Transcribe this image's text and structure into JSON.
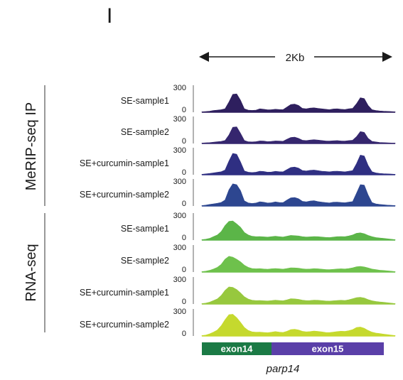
{
  "panel_label": "I",
  "scale_bar": {
    "label": "2Kb"
  },
  "groups": [
    {
      "label": "MeRIP-seq IP",
      "track_indices": [
        0,
        1,
        2,
        3
      ]
    },
    {
      "label": "RNA-seq",
      "track_indices": [
        4,
        5,
        6,
        7
      ]
    }
  ],
  "gene": {
    "name": "parp14",
    "exons": [
      {
        "label": "exon14",
        "color": "#1b7a45"
      },
      {
        "label": "exon15",
        "color": "#5a3fa8"
      }
    ]
  },
  "chart_data": {
    "type": "area",
    "xlabel": "",
    "ylabel": "",
    "ylim": [
      0,
      300
    ],
    "y_ticks": [
      "300",
      "0"
    ],
    "x": [
      0,
      0.02,
      0.04,
      0.06,
      0.08,
      0.1,
      0.12,
      0.14,
      0.16,
      0.18,
      0.2,
      0.22,
      0.24,
      0.26,
      0.28,
      0.3,
      0.32,
      0.34,
      0.36,
      0.38,
      0.4,
      0.42,
      0.44,
      0.46,
      0.48,
      0.5,
      0.52,
      0.54,
      0.56,
      0.58,
      0.6,
      0.62,
      0.64,
      0.66,
      0.68,
      0.7,
      0.72,
      0.74,
      0.76,
      0.78,
      0.8,
      0.82,
      0.84,
      0.86,
      0.88,
      0.9,
      0.92,
      0.94,
      0.96,
      0.98,
      1.0
    ],
    "series": [
      {
        "name": "SE-sample1",
        "color": "#2e1f5e",
        "values": [
          5,
          8,
          12,
          20,
          25,
          30,
          40,
          120,
          210,
          215,
          140,
          40,
          25,
          22,
          25,
          40,
          35,
          28,
          30,
          35,
          32,
          30,
          60,
          90,
          95,
          80,
          45,
          40,
          48,
          52,
          45,
          40,
          35,
          30,
          38,
          40,
          35,
          32,
          40,
          45,
          100,
          170,
          160,
          80,
          30,
          20,
          15,
          12,
          10,
          8,
          5
        ]
      },
      {
        "name": "SE-sample2",
        "color": "#35266e",
        "values": [
          5,
          8,
          10,
          15,
          20,
          25,
          35,
          100,
          190,
          195,
          120,
          35,
          20,
          18,
          22,
          30,
          28,
          22,
          25,
          30,
          28,
          26,
          50,
          70,
          75,
          60,
          38,
          34,
          40,
          44,
          40,
          35,
          30,
          28,
          32,
          34,
          30,
          28,
          34,
          38,
          80,
          140,
          130,
          60,
          25,
          18,
          12,
          10,
          8,
          6,
          5
        ]
      },
      {
        "name": "SE+curcumin-sample1",
        "color": "#2f2f82",
        "values": [
          5,
          10,
          15,
          22,
          28,
          35,
          55,
          160,
          250,
          240,
          150,
          45,
          30,
          26,
          30,
          42,
          38,
          30,
          32,
          40,
          36,
          34,
          60,
          85,
          90,
          78,
          50,
          44,
          52,
          55,
          48,
          42,
          38,
          34,
          40,
          42,
          38,
          34,
          42,
          48,
          130,
          230,
          220,
          110,
          35,
          22,
          15,
          12,
          10,
          8,
          5
        ]
      },
      {
        "name": "SE+curcumin-sample2",
        "color": "#2d4690",
        "values": [
          5,
          10,
          18,
          25,
          32,
          42,
          70,
          190,
          260,
          250,
          180,
          60,
          36,
          30,
          35,
          50,
          44,
          35,
          38,
          48,
          42,
          40,
          70,
          95,
          100,
          85,
          55,
          48,
          58,
          62,
          52,
          46,
          40,
          36,
          44,
          46,
          42,
          38,
          46,
          52,
          150,
          250,
          245,
          130,
          40,
          25,
          18,
          14,
          10,
          8,
          5
        ]
      },
      {
        "name": "SE-sample1",
        "color": "#5bb548",
        "values": [
          5,
          10,
          20,
          40,
          60,
          100,
          170,
          220,
          225,
          190,
          150,
          90,
          60,
          45,
          40,
          42,
          38,
          35,
          40,
          45,
          40,
          36,
          45,
          55,
          52,
          48,
          40,
          36,
          38,
          42,
          40,
          36,
          32,
          30,
          35,
          40,
          42,
          40,
          48,
          60,
          80,
          85,
          75,
          55,
          40,
          30,
          25,
          20,
          15,
          10,
          5
        ]
      },
      {
        "name": "SE-sample2",
        "color": "#6ec14c",
        "values": [
          5,
          10,
          20,
          35,
          55,
          90,
          150,
          185,
          175,
          150,
          120,
          80,
          55,
          42,
          38,
          40,
          36,
          33,
          38,
          42,
          38,
          34,
          42,
          50,
          48,
          45,
          38,
          34,
          36,
          40,
          38,
          34,
          30,
          28,
          32,
          36,
          38,
          36,
          42,
          50,
          62,
          66,
          60,
          48,
          35,
          28,
          22,
          18,
          14,
          10,
          5
        ]
      },
      {
        "name": "SE+curcumin-sample1",
        "color": "#97c83e",
        "values": [
          5,
          10,
          22,
          40,
          60,
          100,
          160,
          200,
          195,
          170,
          130,
          85,
          58,
          44,
          40,
          42,
          38,
          36,
          40,
          46,
          42,
          38,
          48,
          62,
          60,
          55,
          45,
          40,
          42,
          46,
          44,
          40,
          36,
          34,
          38,
          42,
          44,
          42,
          50,
          62,
          75,
          78,
          70,
          52,
          38,
          30,
          24,
          20,
          15,
          10,
          5
        ]
      },
      {
        "name": "SE+curcumin-sample2",
        "color": "#c5d92e",
        "values": [
          5,
          10,
          25,
          45,
          70,
          120,
          190,
          250,
          255,
          215,
          160,
          100,
          65,
          48,
          44,
          46,
          42,
          38,
          44,
          52,
          46,
          42,
          55,
          75,
          78,
          70,
          55,
          48,
          52,
          58,
          54,
          48,
          42,
          40,
          46,
          52,
          56,
          54,
          62,
          75,
          100,
          105,
          90,
          65,
          45,
          34,
          28,
          22,
          16,
          10,
          5
        ]
      }
    ]
  }
}
